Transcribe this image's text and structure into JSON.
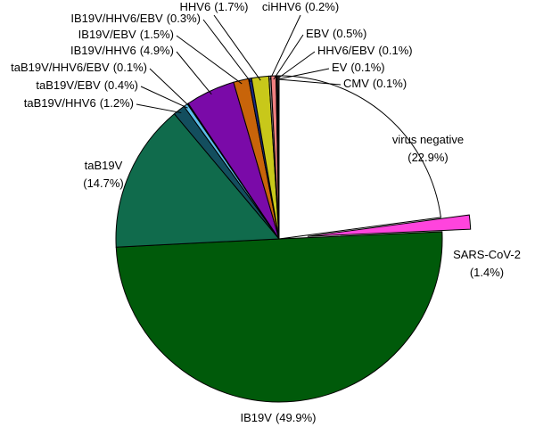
{
  "chart_data": {
    "type": "pie",
    "categories": [
      "virus negative",
      "SARS-CoV-2",
      "IB19V",
      "taB19V",
      "taB19V/HHV6",
      "taB19V/EBV",
      "taB19V/HHV6/EBV",
      "IB19V/HHV6",
      "IB19V/EBV",
      "IB19V/HHV6/EBV",
      "HHV6",
      "ciHHV6",
      "EBV",
      "HHV6/EBV",
      "EV",
      "CMV"
    ],
    "values": [
      22.9,
      1.4,
      49.9,
      14.7,
      1.2,
      0.4,
      0.1,
      4.9,
      1.5,
      0.3,
      1.7,
      0.2,
      0.5,
      0.1,
      0.1,
      0.1
    ],
    "value_labels": [
      "(22.9%)",
      "(1.4%)",
      "(49.9%)",
      "(14.7%)",
      "(1.2%)",
      "(0.4%)",
      "(0.1%)",
      "(4.9%)",
      "(1.5%)",
      "(0.3%)",
      "(1.7%)",
      "(0.2%)",
      "(0.5%)",
      "(0.1%)",
      "(0.1%)",
      "(0.1%)"
    ],
    "colors": [
      "#ffffff",
      "#ff44dd",
      "#005a0a",
      "#106b4c",
      "#134e5e",
      "#5bbce8",
      "#2a2a7a",
      "#7a0aa8",
      "#c8640a",
      "#1a2a80",
      "#c8c81a",
      "#8a8a8a",
      "#f08080",
      "#e0a0a0",
      "#ffffff",
      "#ffcccc"
    ]
  }
}
